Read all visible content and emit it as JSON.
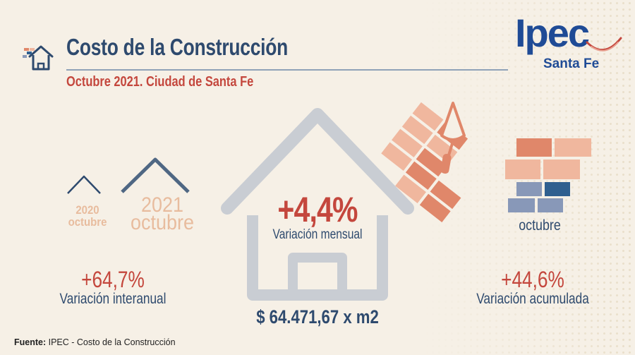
{
  "header": {
    "title": "Costo de la Construcción",
    "subtitle": "Octubre 2021. Ciudad de Santa Fe"
  },
  "logo": {
    "name": "Ipec",
    "region": "Santa Fe"
  },
  "comparison": {
    "previous": {
      "year": "2020",
      "month": "octubre"
    },
    "current": {
      "year": "2021",
      "month": "octubre"
    }
  },
  "stats": {
    "mensual": {
      "value": "+4,4%",
      "label": "Variación mensual"
    },
    "interanual": {
      "value": "+64,7%",
      "label": "Variación interanual"
    },
    "acumulada": {
      "value": "+44,6%",
      "label": "Variación acumulada",
      "period": "octubre"
    },
    "price": "$ 64.471,67 x m2"
  },
  "footer": {
    "source_label": "Fuente:",
    "source_text": " IPEC - Costo de la Construcción"
  },
  "colors": {
    "navy": "#2e4a6e",
    "red": "#c4473d",
    "peach": "#e8bc9e",
    "house_gray": "#c9cdd3",
    "brick_light": "#f0b79e",
    "brick_dark": "#e0876a",
    "brick_blue": "#2f5f8f",
    "brick_blue_light": "#8898b8"
  },
  "icons": [
    "house-brick-icon",
    "house-outline-icon",
    "bricks-icon",
    "trowel-icon",
    "brick-stack-icon",
    "roof-icon"
  ]
}
